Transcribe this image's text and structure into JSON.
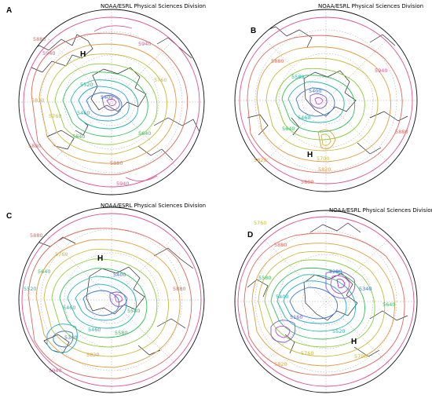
{
  "credit": "NOAA/ESRL Physical Sciences Division",
  "panels": [
    {
      "letter": "A",
      "contour_labels": [
        {
          "text": "5880",
          "color": "#d86a5a"
        },
        {
          "text": "5940",
          "color": "#e0508f"
        },
        {
          "text": "5820",
          "color": "#e29a3e"
        },
        {
          "text": "5940",
          "color": "#e0508f"
        },
        {
          "text": "5760",
          "color": "#c9b93a"
        },
        {
          "text": "5640",
          "color": "#2fbf5a"
        },
        {
          "text": "5460",
          "color": "#22b6a4"
        },
        {
          "text": "5400",
          "color": "#3a78d0"
        },
        {
          "text": "5520",
          "color": "#22b6a4"
        },
        {
          "text": "5640",
          "color": "#2fbf5a"
        },
        {
          "text": "5760",
          "color": "#c9b93a"
        },
        {
          "text": "5880",
          "color": "#d86a5a"
        },
        {
          "text": "5880",
          "color": "#d86a5a"
        },
        {
          "text": "5940",
          "color": "#e0508f"
        }
      ],
      "highs": [
        "H"
      ]
    },
    {
      "letter": "B",
      "contour_labels": [
        {
          "text": "5940",
          "color": "#e0508f"
        },
        {
          "text": "5880",
          "color": "#d86a5a"
        },
        {
          "text": "5580",
          "color": "#22b6a4"
        },
        {
          "text": "5400",
          "color": "#3a78d0"
        },
        {
          "text": "5460",
          "color": "#22b6a4"
        },
        {
          "text": "5640",
          "color": "#2fbf5a"
        },
        {
          "text": "5880",
          "color": "#d86a5a"
        },
        {
          "text": "5700",
          "color": "#c9b93a"
        },
        {
          "text": "5820",
          "color": "#e29a3e"
        },
        {
          "text": "5820",
          "color": "#e29a3e"
        },
        {
          "text": "5880",
          "color": "#d86a5a"
        }
      ],
      "highs": [
        "H"
      ]
    },
    {
      "letter": "C",
      "contour_labels": [
        {
          "text": "5880",
          "color": "#d86a5a"
        },
        {
          "text": "5760",
          "color": "#c9b93a"
        },
        {
          "text": "5640",
          "color": "#2fbf5a"
        },
        {
          "text": "5520",
          "color": "#22b6a4"
        },
        {
          "text": "5400",
          "color": "#3a78d0"
        },
        {
          "text": "5460",
          "color": "#22b6a4"
        },
        {
          "text": "5580",
          "color": "#2fbf5a"
        },
        {
          "text": "5880",
          "color": "#d86a5a"
        },
        {
          "text": "5340",
          "color": "#3a78d0"
        },
        {
          "text": "5460",
          "color": "#22b6a4"
        },
        {
          "text": "5820",
          "color": "#e29a3e"
        },
        {
          "text": "5580",
          "color": "#2fbf5a"
        },
        {
          "text": "5940",
          "color": "#e0508f"
        }
      ],
      "highs": [
        "H"
      ]
    },
    {
      "letter": "D",
      "contour_labels": [
        {
          "text": "5760",
          "color": "#c9b93a"
        },
        {
          "text": "5880",
          "color": "#d86a5a"
        },
        {
          "text": "5580",
          "color": "#2fbf5a"
        },
        {
          "text": "5280",
          "color": "#3a78d0"
        },
        {
          "text": "5400",
          "color": "#22b6a4"
        },
        {
          "text": "5160",
          "color": "#7a5ad0"
        },
        {
          "text": "5340",
          "color": "#3a78d0"
        },
        {
          "text": "5520",
          "color": "#22b6a4"
        },
        {
          "text": "5640",
          "color": "#2fbf5a"
        },
        {
          "text": "5760",
          "color": "#c9b93a"
        },
        {
          "text": "5820",
          "color": "#e29a3e"
        },
        {
          "text": "5700",
          "color": "#c9b93a"
        }
      ],
      "highs": [
        "H"
      ]
    }
  ]
}
